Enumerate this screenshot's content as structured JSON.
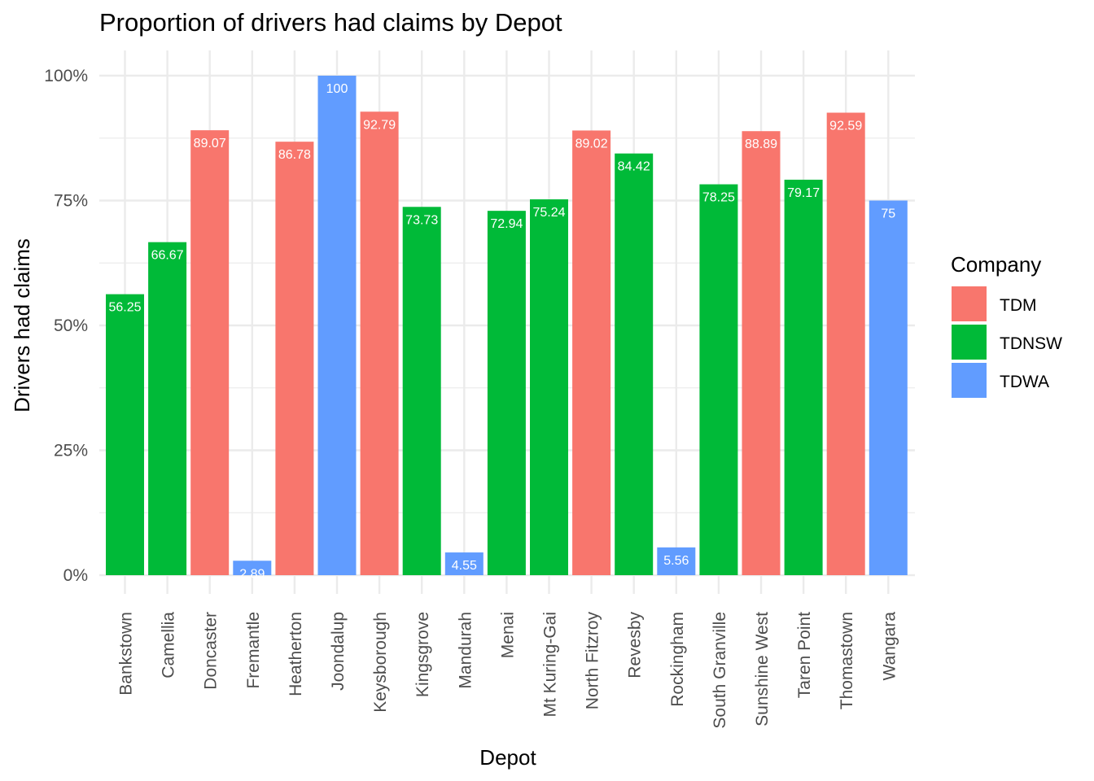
{
  "chart_data": {
    "type": "bar",
    "title": "Proportion of drivers had claims by Depot",
    "xlabel": "Depot",
    "ylabel": "Drivers had claims",
    "ylim": [
      0,
      100
    ],
    "yticks": [
      "0%",
      "25%",
      "50%",
      "75%",
      "100%"
    ],
    "yticks_values": [
      0,
      25,
      50,
      75,
      100
    ],
    "grid": true,
    "legend": {
      "title": "Company",
      "placement": "right",
      "entries": [
        "TDM",
        "TDNSW",
        "TDWA"
      ]
    },
    "colors": {
      "TDM": "#F8766D",
      "TDNSW": "#00BA38",
      "TDWA": "#619CFF"
    },
    "categories": [
      "Bankstown",
      "Camellia",
      "Doncaster",
      "Fremantle",
      "Heatherton",
      "Joondalup",
      "Keysborough",
      "Kingsgrove",
      "Mandurah",
      "Menai",
      "Mt Kuring-Gai",
      "North Fitzroy",
      "Revesby",
      "Rockingham",
      "South Granville",
      "Sunshine West",
      "Taren Point",
      "Thomastown",
      "Wangara"
    ],
    "values": [
      56.25,
      66.67,
      89.07,
      2.89,
      86.78,
      100,
      92.79,
      73.73,
      4.55,
      72.94,
      75.24,
      89.02,
      84.42,
      5.56,
      78.25,
      88.89,
      79.17,
      92.59,
      75
    ],
    "value_labels": [
      "56.25",
      "66.67",
      "89.07",
      "2.89",
      "86.78",
      "100",
      "92.79",
      "73.73",
      "4.55",
      "72.94",
      "75.24",
      "89.02",
      "84.42",
      "5.56",
      "78.25",
      "88.89",
      "79.17",
      "92.59",
      "75"
    ],
    "company": [
      "TDNSW",
      "TDNSW",
      "TDM",
      "TDWA",
      "TDM",
      "TDWA",
      "TDM",
      "TDNSW",
      "TDWA",
      "TDNSW",
      "TDNSW",
      "TDM",
      "TDNSW",
      "TDWA",
      "TDNSW",
      "TDM",
      "TDNSW",
      "TDM",
      "TDWA"
    ]
  }
}
